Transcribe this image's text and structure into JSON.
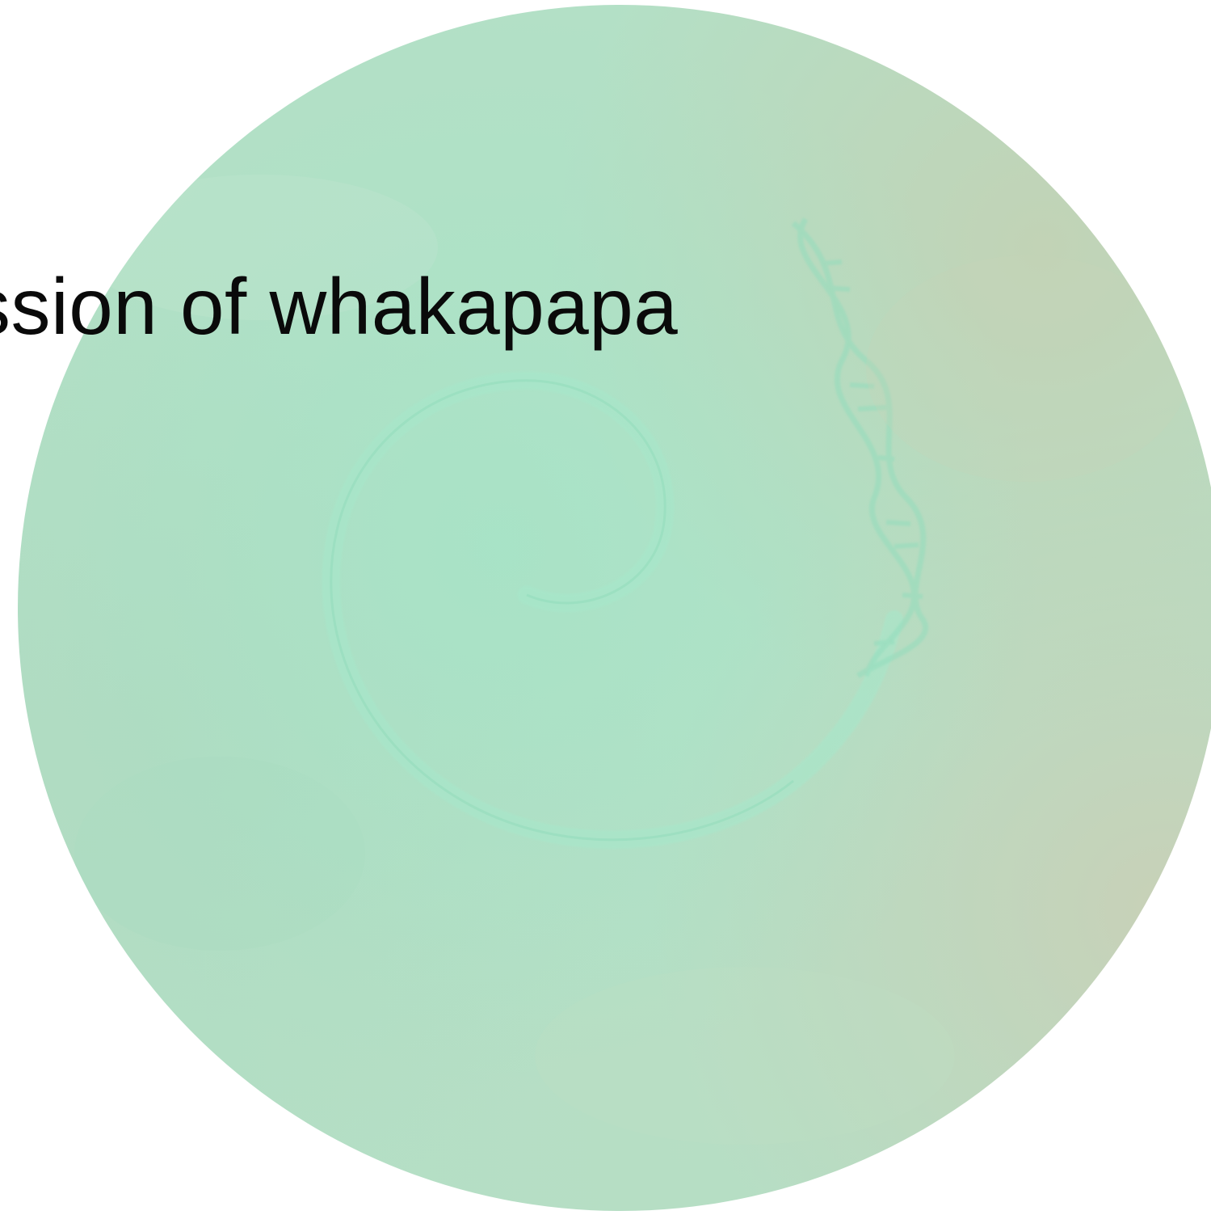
{
  "slide": {
    "heading": "ssion of whakapapa"
  },
  "colors": {
    "page_background": "#ffffff",
    "disc_base": "#b3e0c6",
    "disc_warm_edge": "#cdccb4",
    "spiral_line": "#9fe6c8",
    "heading_text": "#0a0a0a"
  },
  "artwork": {
    "shape": "circle",
    "motifs": [
      "koru-spiral",
      "dna-helix"
    ]
  }
}
